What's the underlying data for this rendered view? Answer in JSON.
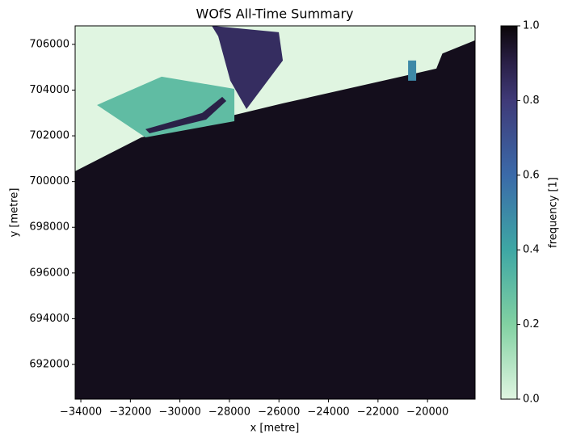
{
  "chart_data": {
    "type": "raster",
    "title": "WOfS All-Time Summary",
    "x_label": "x [metre]",
    "y_label": "y [metre]",
    "colorbar_label": "frequency [1]",
    "xlim": [
      -34230,
      -18080
    ],
    "ylim": [
      690480,
      706810
    ],
    "xticks": [
      {
        "value": -34000,
        "label": "−34000"
      },
      {
        "value": -32000,
        "label": "−32000"
      },
      {
        "value": -30000,
        "label": "−30000"
      },
      {
        "value": -28000,
        "label": "−28000"
      },
      {
        "value": -26000,
        "label": "−26000"
      },
      {
        "value": -24000,
        "label": "−24000"
      },
      {
        "value": -22000,
        "label": "−22000"
      },
      {
        "value": -20000,
        "label": "−20000"
      }
    ],
    "yticks": [
      692000,
      694000,
      696000,
      698000,
      700000,
      702000,
      704000,
      706000
    ],
    "clim": [
      0,
      1
    ],
    "cticks": [
      {
        "value": 0,
        "label": "0.0"
      },
      0.2,
      0.4,
      0.6,
      0.8,
      {
        "value": 1,
        "label": "1.0"
      }
    ],
    "colormap": [
      {
        "value": 0,
        "color": "#e0f5e1"
      },
      {
        "value": 0.2,
        "color": "#82d1a2"
      },
      {
        "value": 0.4,
        "color": "#3ea7a4"
      },
      {
        "value": 0.6,
        "color": "#3b6aa9"
      },
      {
        "value": 0.8,
        "color": "#3f3a78"
      },
      {
        "value": 0.9,
        "color": "#2a2047"
      },
      {
        "value": 1,
        "color": "#0b0609"
      }
    ],
    "background_value": 0,
    "regions": [
      {
        "value": 0.97,
        "x": [
          -34230,
          -31553,
          -25843,
          -19643,
          -19400,
          -18080,
          -18080,
          -34230
        ],
        "y": [
          700450,
          701934,
          703419,
          704939,
          705600,
          706180,
          690480,
          690480
        ]
      },
      {
        "value": 0.3,
        "x": [
          -33347,
          -30737,
          -27800,
          -27800,
          -31390
        ],
        "y": [
          703348,
          704586,
          704055,
          702641,
          701934
        ]
      },
      {
        "value": 0.9,
        "x": [
          -31390,
          -29105,
          -28290,
          -28126,
          -28942,
          -31227
        ],
        "y": [
          702288,
          702995,
          703702,
          703525,
          702712,
          702111
        ]
      },
      {
        "value": 0.85,
        "x": [
          -28714,
          -26006,
          -25843,
          -27311,
          -27964,
          -28453
        ],
        "y": [
          706813,
          706530,
          705293,
          703171,
          704409,
          706354
        ]
      },
      {
        "value": 0.5,
        "x": [
          -20785,
          -20459,
          -20459,
          -20785
        ],
        "y": [
          705293,
          705293,
          704409,
          704409
        ]
      }
    ]
  }
}
